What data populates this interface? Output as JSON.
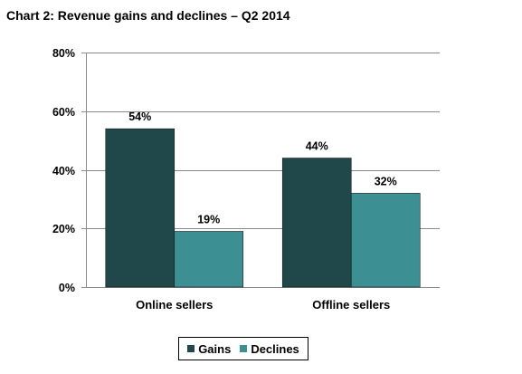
{
  "chart_data": {
    "type": "bar",
    "title": "Chart 2: Revenue gains and declines – Q2 2014",
    "categories": [
      "Online sellers",
      "Offline sellers"
    ],
    "series": [
      {
        "name": "Gains",
        "values": [
          54,
          44
        ],
        "labels": [
          "54%",
          "44%"
        ],
        "color": "#20484A"
      },
      {
        "name": "Declines",
        "values": [
          19,
          32
        ],
        "labels": [
          "19%",
          "32%"
        ],
        "color": "#3C8F93"
      }
    ],
    "ylim": [
      0,
      80
    ],
    "yticks": [
      0,
      20,
      40,
      60,
      80
    ],
    "ytick_labels": [
      "0%",
      "20%",
      "40%",
      "60%",
      "80%"
    ],
    "grid": true,
    "legend": "bottom",
    "xlabel": "",
    "ylabel": ""
  }
}
